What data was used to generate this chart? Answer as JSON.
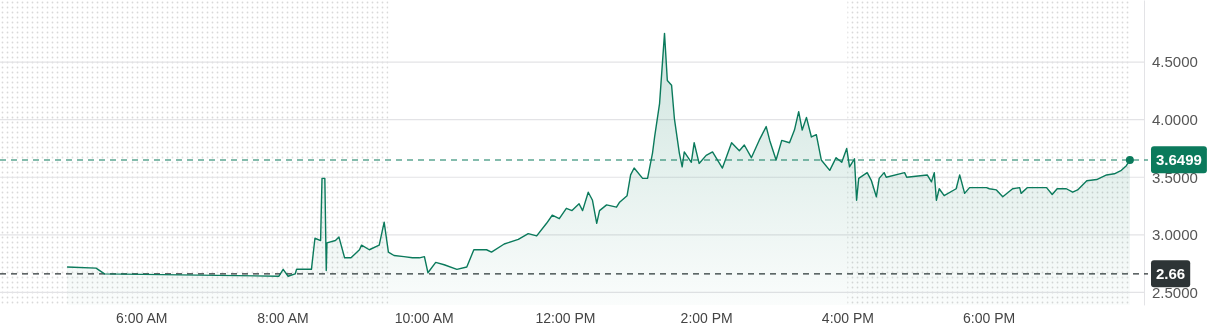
{
  "chart_data": {
    "type": "area",
    "xlim": [
      4,
      20.2
    ],
    "ylim": [
      2.39,
      5.04
    ],
    "xticks": [
      {
        "value": 6,
        "label": "6:00 AM"
      },
      {
        "value": 8,
        "label": "8:00 AM"
      },
      {
        "value": 10,
        "label": "10:00 AM"
      },
      {
        "value": 12,
        "label": "12:00 PM"
      },
      {
        "value": 14,
        "label": "2:00 PM"
      },
      {
        "value": 16,
        "label": "4:00 PM"
      },
      {
        "value": 18,
        "label": "6:00 PM"
      }
    ],
    "yticks": [
      {
        "value": 2.5,
        "label": "2.5000"
      },
      {
        "value": 3,
        "label": "3.0000"
      },
      {
        "value": 3.5,
        "label": "3.5000"
      },
      {
        "value": 4,
        "label": "4.0000"
      },
      {
        "value": 4.5,
        "label": "4.5000"
      }
    ],
    "grid": "y",
    "line_style": "solid",
    "marker": "none",
    "series": [
      {
        "color": "#0b7a5c",
        "x": [
          4.95,
          5.36,
          5.48,
          7.95,
          8.01,
          8.08,
          8.18,
          8.2,
          8.41,
          8.46,
          8.54,
          8.56,
          8.6,
          8.62,
          8.63,
          8.75,
          8.8,
          8.88,
          8.97,
          9.09,
          9.12,
          9.23,
          9.37,
          9.44,
          9.5,
          9.58,
          9.72,
          9.84,
          9.94,
          10.01,
          10.06,
          10.17,
          10.29,
          10.47,
          10.61,
          10.71,
          10.89,
          10.96,
          11.14,
          11.34,
          11.48,
          11.6,
          11.74,
          11.82,
          11.92,
          12.02,
          12.1,
          12.2,
          12.25,
          12.33,
          12.39,
          12.45,
          12.49,
          12.59,
          12.73,
          12.77,
          12.88,
          12.93,
          12.98,
          13.1,
          13.17,
          13.24,
          13.27,
          13.34,
          13.41,
          13.45,
          13.51,
          13.55,
          13.62,
          13.66,
          13.69,
          13.79,
          13.83,
          13.9,
          14.0,
          14.09,
          14.23,
          14.36,
          14.47,
          14.54,
          14.64,
          14.75,
          14.85,
          14.9,
          14.99,
          15.07,
          15.18,
          15.25,
          15.31,
          15.36,
          15.42,
          15.49,
          15.56,
          15.63,
          15.75,
          15.84,
          15.92,
          15.99,
          16.03,
          16.1,
          16.13,
          16.16,
          16.28,
          16.34,
          16.41,
          16.45,
          16.52,
          16.55,
          16.81,
          16.84,
          17.13,
          17.19,
          17.23,
          17.26,
          17.3,
          17.37,
          17.54,
          17.59,
          17.66,
          17.73,
          17.97,
          18.01,
          18.11,
          18.2,
          18.34,
          18.44,
          18.46,
          18.55,
          18.82,
          18.9,
          18.97,
          19.1,
          19.19,
          19.26,
          19.39,
          19.53,
          19.67,
          19.78,
          19.88,
          19.95,
          20
        ],
        "values": [
          2.72,
          2.71,
          2.66,
          2.64,
          2.7,
          2.64,
          2.66,
          2.7,
          2.7,
          2.97,
          2.95,
          3.49,
          3.49,
          2.69,
          2.93,
          2.95,
          2.98,
          2.8,
          2.8,
          2.87,
          2.91,
          2.87,
          2.91,
          3.11,
          2.85,
          2.82,
          2.81,
          2.8,
          2.8,
          2.81,
          2.67,
          2.76,
          2.74,
          2.7,
          2.72,
          2.87,
          2.87,
          2.85,
          2.92,
          2.96,
          3.01,
          2.99,
          3.1,
          3.17,
          3.14,
          3.23,
          3.21,
          3.27,
          3.21,
          3.37,
          3.3,
          3.1,
          3.21,
          3.26,
          3.24,
          3.28,
          3.34,
          3.52,
          3.58,
          3.49,
          3.49,
          3.71,
          3.85,
          4.14,
          4.75,
          4.34,
          4.3,
          4.01,
          3.71,
          3.59,
          3.72,
          3.63,
          3.8,
          3.62,
          3.69,
          3.72,
          3.58,
          3.8,
          3.73,
          3.78,
          3.67,
          3.82,
          3.94,
          3.82,
          3.65,
          3.82,
          3.8,
          3.91,
          4.07,
          3.91,
          4.02,
          3.85,
          3.87,
          3.65,
          3.56,
          3.67,
          3.63,
          3.75,
          3.59,
          3.66,
          3.3,
          3.49,
          3.54,
          3.47,
          3.33,
          3.49,
          3.54,
          3.5,
          3.54,
          3.5,
          3.52,
          3.46,
          3.54,
          3.3,
          3.4,
          3.34,
          3.4,
          3.52,
          3.36,
          3.41,
          3.41,
          3.4,
          3.39,
          3.33,
          3.4,
          3.41,
          3.36,
          3.41,
          3.41,
          3.35,
          3.4,
          3.4,
          3.37,
          3.39,
          3.47,
          3.48,
          3.52,
          3.53,
          3.56,
          3.6,
          3.6499
        ]
      },
      {
        "type": "scatter",
        "marker": "circle",
        "color": "#0b7a5c",
        "x": [
          20
        ],
        "values": [
          3.6499
        ]
      }
    ],
    "ref_lines": [
      {
        "axis": "y",
        "value": 3.6499,
        "label": "3.6499",
        "color": "#0b7a5c",
        "line_style": "dashed"
      },
      {
        "axis": "y",
        "value": 2.66,
        "label": "2.66",
        "color": "#2d3436",
        "line_style": "dashed"
      }
    ],
    "bands": [
      {
        "axis": "x",
        "from": 4,
        "to": 9.5,
        "color": "#d9d9d9"
      },
      {
        "axis": "x",
        "from": 16,
        "to": 20,
        "color": "#d9d9d9"
      }
    ]
  }
}
